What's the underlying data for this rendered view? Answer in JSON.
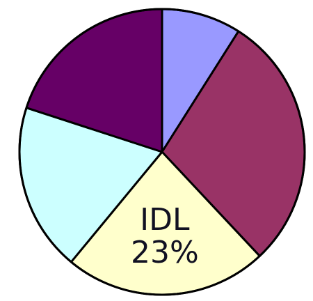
{
  "chart_data": {
    "type": "pie",
    "categories": [
      null,
      null,
      "IDL",
      null,
      null
    ],
    "values": [
      9,
      29,
      23,
      19,
      20
    ],
    "value_labels": [
      null,
      null,
      "23%",
      null,
      null
    ],
    "colors": [
      "#9999ff",
      "#993366",
      "#ffffcc",
      "#ccffff",
      "#660066"
    ]
  }
}
